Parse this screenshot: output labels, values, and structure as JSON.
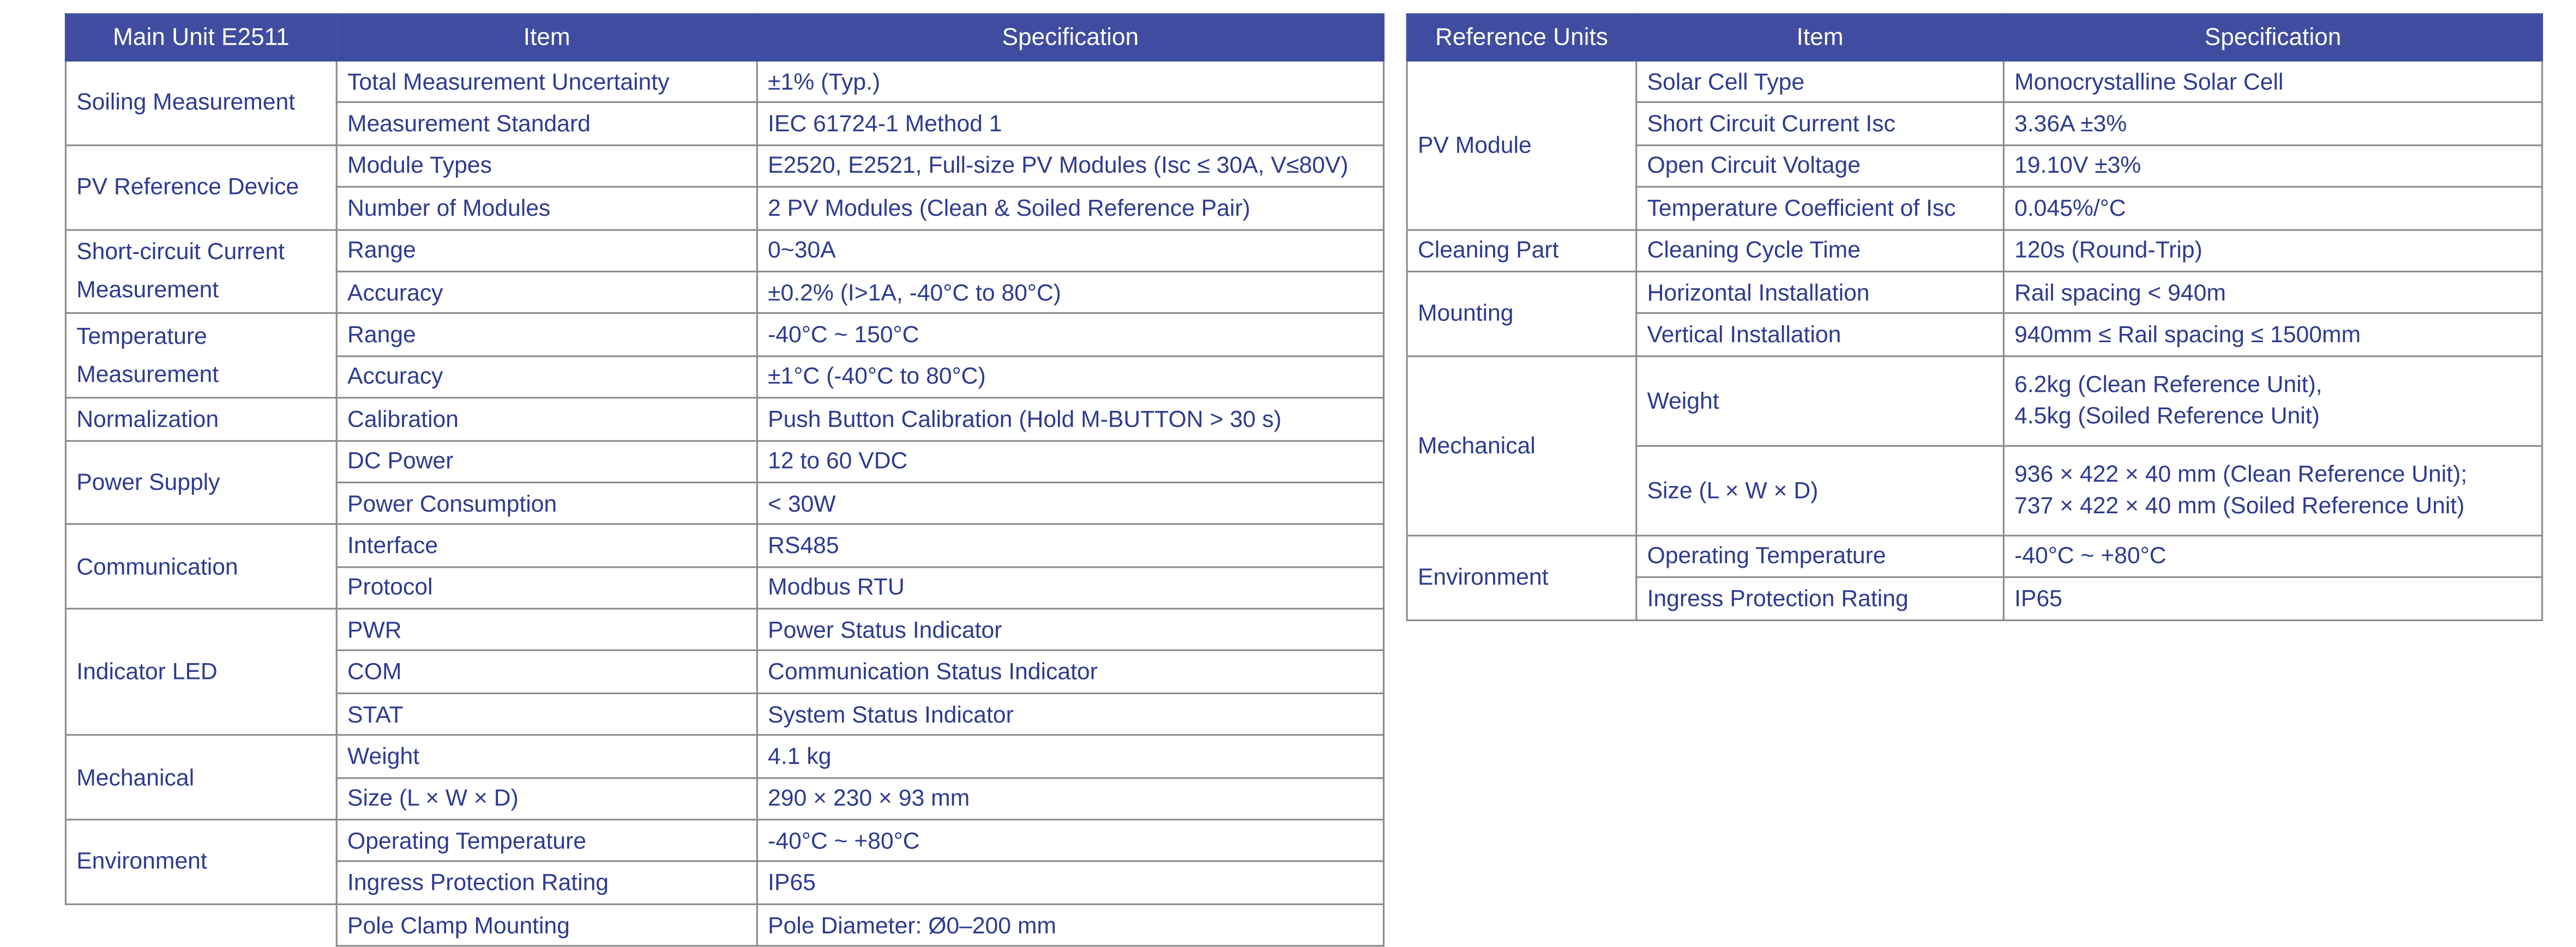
{
  "left_table": {
    "header": [
      "Main Unit E2511",
      "Item",
      "Specification"
    ],
    "groups": [
      {
        "label": "Soiling Measurement",
        "rows": [
          [
            "Total Measurement Uncertainty",
            "±1% (Typ.)"
          ],
          [
            "Measurement Standard",
            "IEC 61724-1 Method 1"
          ]
        ]
      },
      {
        "label": "PV Reference Device",
        "rows": [
          [
            "Module Types",
            "E2520, E2521, Full-size PV Modules (Isc ≤ 30A, V≤80V)"
          ],
          [
            "Number of Modules",
            "2 PV Modules (Clean & Soiled Reference Pair)"
          ]
        ]
      },
      {
        "label": "Short-circuit Current Measurement",
        "rows": [
          [
            "Range",
            "0~30A"
          ],
          [
            "Accuracy",
            "±0.2% (I>1A, -40°C to 80°C)"
          ]
        ]
      },
      {
        "label": "Temperature Measurement",
        "rows": [
          [
            "Range",
            "-40°C ~ 150°C"
          ],
          [
            "Accuracy",
            "±1°C (-40°C to 80°C)"
          ]
        ]
      },
      {
        "label": "Normalization",
        "rows": [
          [
            "Calibration",
            "Push Button Calibration (Hold M-BUTTON > 30 s)"
          ]
        ]
      },
      {
        "label": "Power Supply",
        "rows": [
          [
            "DC Power",
            "12 to 60 VDC"
          ],
          [
            "Power Consumption",
            "< 30W"
          ]
        ]
      },
      {
        "label": "Communication",
        "rows": [
          [
            "Interface",
            "RS485"
          ],
          [
            "Protocol",
            "Modbus RTU"
          ]
        ]
      },
      {
        "label": "Indicator LED",
        "rows": [
          [
            "PWR",
            "Power Status Indicator"
          ],
          [
            "COM",
            "Communication Status Indicator"
          ],
          [
            "STAT",
            "System Status Indicator"
          ]
        ]
      },
      {
        "label": "Mechanical",
        "rows": [
          [
            "Weight",
            "4.1 kg"
          ],
          [
            "Size (L × W × D)",
            "290 × 230 × 93 mm"
          ]
        ]
      },
      {
        "label": "Environment",
        "rows": [
          [
            "Operating Temperature",
            "-40°C ~ +80°C"
          ],
          [
            "Ingress Protection Rating",
            "IP65"
          ]
        ]
      },
      {
        "rows": [
          [
            "Pole Clamp Mounting",
            "Pole Diameter: Ø0–200 mm"
          ]
        ]
      }
    ]
  },
  "right_table": {
    "header": [
      "Reference Units",
      "Item",
      "Specification"
    ],
    "groups": [
      {
        "label": "PV Module",
        "rows": [
          [
            "Solar Cell Type",
            "Monocrystalline Solar Cell"
          ],
          [
            "Short Circuit Current Isc",
            "3.36A ±3%"
          ],
          [
            "Open Circuit Voltage",
            "19.10V ±3%"
          ],
          [
            "Temperature Coefficient of Isc",
            "0.045%/°C"
          ]
        ]
      },
      {
        "label": "Cleaning Part",
        "rows": [
          [
            "Cleaning Cycle Time",
            "120s (Round-Trip)"
          ]
        ]
      },
      {
        "label": "Mounting",
        "rows": [
          [
            "Horizontal Installation",
            "Rail spacing < 940m"
          ],
          [
            "Vertical Installation",
            "940mm ≤ Rail spacing ≤ 1500mm"
          ]
        ]
      },
      {
        "label": "Mechanical",
        "rows": [
          [
            "Weight",
            "6.2kg (Clean Reference Unit),\n4.5kg (Soiled Reference Unit)"
          ],
          [
            "Size (L × W × D)",
            "936 × 422 × 40 mm (Clean Reference Unit);\n 737 × 422 × 40 mm (Soiled Reference Unit)"
          ]
        ]
      },
      {
        "label": "Environment",
        "rows": [
          [
            "Operating Temperature",
            "-40°C ~ +80°C"
          ],
          [
            "Ingress Protection Rating",
            "IP65"
          ]
        ]
      }
    ]
  }
}
